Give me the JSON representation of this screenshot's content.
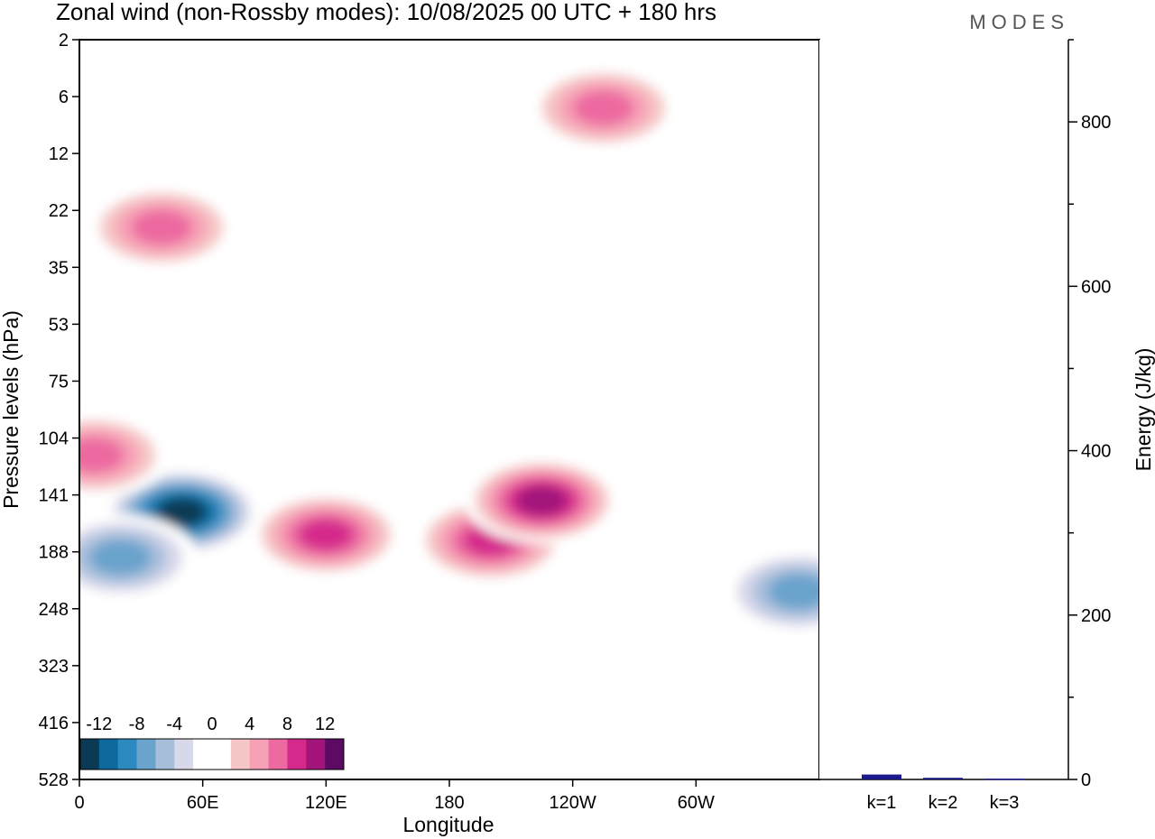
{
  "chart_data": {
    "type": "heatmap",
    "title": "Zonal wind (non-Rossby modes):  10/08/2025  00 UTC  + 180 hrs",
    "brand": "MODES",
    "xlabel": "Longitude",
    "ylabel": "Pressure levels (hPa)",
    "x_ticks": [
      {
        "label": "0",
        "lon": 0
      },
      {
        "label": "60E",
        "lon": 60
      },
      {
        "label": "120E",
        "lon": 120
      },
      {
        "label": "180",
        "lon": 180
      },
      {
        "label": "120W",
        "lon": 240
      },
      {
        "label": "60W",
        "lon": 300
      }
    ],
    "x_range": [
      0,
      360
    ],
    "y_levels": [
      "2",
      "6",
      "12",
      "22",
      "35",
      "53",
      "75",
      "104",
      "141",
      "188",
      "248",
      "323",
      "416",
      "528"
    ],
    "colorbar": {
      "tick_labels": [
        "-12",
        "-8",
        "-4",
        "0",
        "4",
        "8",
        "12"
      ],
      "colors": [
        "#0b3a55",
        "#0e6a9c",
        "#2d8ac0",
        "#6aa3cc",
        "#a7bedb",
        "#d7d8ea",
        "#ffffff",
        "#ffffff",
        "#f6c6c6",
        "#f6a0b5",
        "#ec6aa0",
        "#d52a8c",
        "#a3157a",
        "#5c0a62"
      ]
    },
    "features": [
      {
        "lon": 50,
        "level_index": 8.3,
        "value": -13,
        "note": "strong easterly core"
      },
      {
        "lon": 20,
        "level_index": 9.1,
        "value": -8
      },
      {
        "lon": 7,
        "level_index": 7.3,
        "value": 7
      },
      {
        "lon": 120,
        "level_index": 8.7,
        "value": 10
      },
      {
        "lon": 200,
        "level_index": 8.8,
        "value": 10
      },
      {
        "lon": 225,
        "level_index": 8.1,
        "value": 11
      },
      {
        "lon": 350,
        "level_index": 9.7,
        "value": -7
      },
      {
        "lon": 255,
        "level_index": 1.2,
        "value": 8
      },
      {
        "lon": 40,
        "level_index": 3.3,
        "value": 7
      }
    ],
    "energy_panel": {
      "ylabel": "Energy (J/kg)",
      "ylim": [
        0,
        900
      ],
      "y_ticks": [
        0,
        200,
        400,
        600,
        800
      ],
      "bars": [
        {
          "label": "k=1",
          "value": 6,
          "color": "#1a1a8c"
        },
        {
          "label": "k=2",
          "value": 2,
          "color": "#1a1a8c"
        },
        {
          "label": "k=3",
          "value": 1,
          "color": "#1a1a8c"
        }
      ]
    }
  }
}
